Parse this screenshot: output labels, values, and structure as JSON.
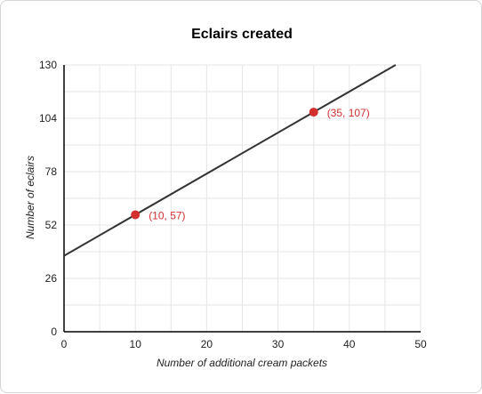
{
  "chart_data": {
    "type": "line",
    "title": "Eclairs created",
    "xlabel": "Number of additional cream packets",
    "ylabel": "Number of eclairs",
    "xlim": [
      0,
      50
    ],
    "ylim": [
      0,
      130
    ],
    "x_ticks": [
      0,
      10,
      20,
      30,
      40,
      50
    ],
    "y_ticks": [
      0,
      26,
      52,
      78,
      104,
      130
    ],
    "x_tick_labels": [
      "0",
      "10",
      "20",
      "30",
      "40",
      "50"
    ],
    "y_tick_labels": [
      "0",
      "26",
      "52",
      "78",
      "104",
      "130"
    ],
    "grid": true,
    "line": {
      "slope": 2,
      "intercept": 37,
      "x_range": [
        0,
        46.5
      ]
    },
    "points": [
      {
        "x": 10,
        "y": 57,
        "label": "(10, 57)"
      },
      {
        "x": 35,
        "y": 107,
        "label": "(35, 107)"
      }
    ],
    "colors": {
      "line": "#333333",
      "point": "#d32f2f",
      "grid": "#e6e6e6",
      "axis": "#000000"
    }
  }
}
